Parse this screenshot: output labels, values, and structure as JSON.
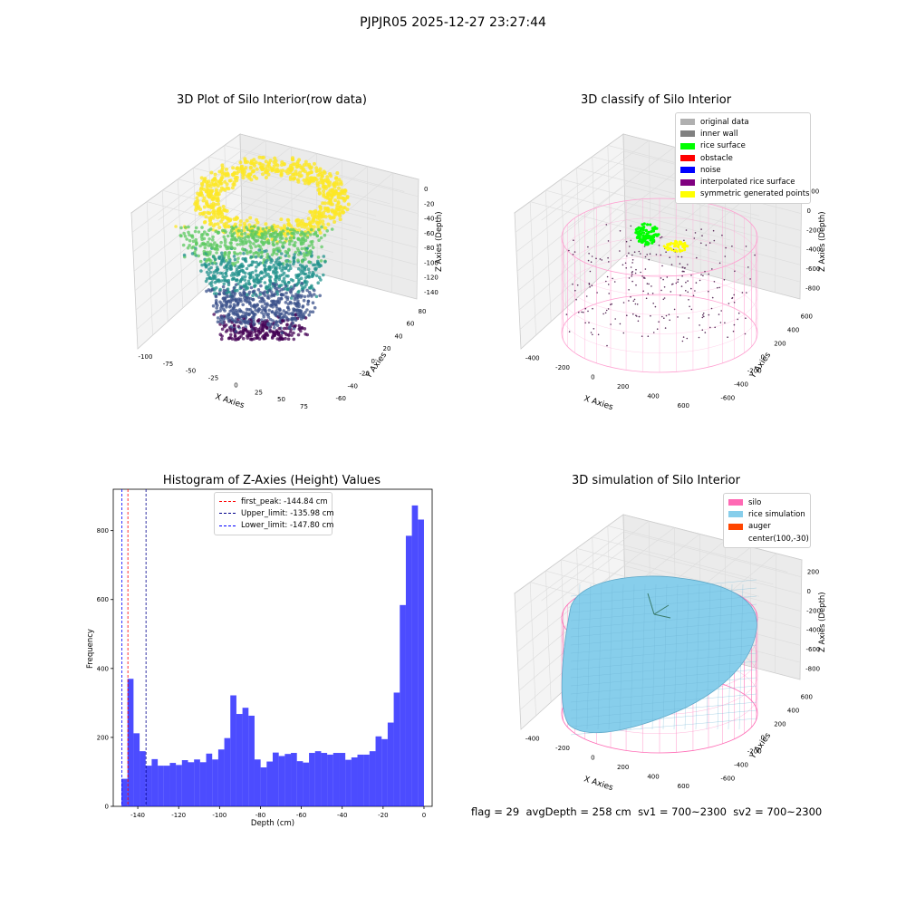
{
  "suptitle": "PJPJR05 2025-12-27 23:27:44",
  "panels": {
    "raw": {
      "title": "3D Plot of Silo Interior(row data)",
      "xlabel": "X Axies",
      "ylabel": "Y Axies",
      "zlabel": "Z Axies (Depth)",
      "xticks": [
        "-100",
        "-75",
        "-50",
        "-25",
        "0",
        "25",
        "50",
        "75"
      ],
      "yticks": [
        "-60",
        "-40",
        "-20",
        "0",
        "20",
        "40",
        "60",
        "80"
      ],
      "zticks": [
        "0",
        "-20",
        "-40",
        "-60",
        "-80",
        "-100",
        "-120",
        "-140"
      ]
    },
    "classify": {
      "title": "3D classify of Silo Interior",
      "xlabel": "X Axies",
      "ylabel": "Y Axies",
      "zlabel": "Z Axies (Depth)",
      "xticks": [
        "-400",
        "-200",
        "0",
        "200",
        "400",
        "600"
      ],
      "yticks": [
        "-600",
        "-400",
        "-200",
        "0",
        "200",
        "400",
        "600"
      ],
      "zticks": [
        "200",
        "0",
        "-200",
        "-400",
        "-600",
        "-800"
      ],
      "legend": [
        {
          "label": "original data",
          "color": "#b0b0b0"
        },
        {
          "label": "inner wall",
          "color": "#808080"
        },
        {
          "label": "rice surface",
          "color": "#00ff00"
        },
        {
          "label": "obstacle",
          "color": "#ff0000"
        },
        {
          "label": "noise",
          "color": "#0000ff"
        },
        {
          "label": "interpolated rice surface",
          "color": "#800080"
        },
        {
          "label": "symmetric generated points",
          "color": "#ffff00"
        }
      ]
    },
    "histogram": {
      "title": "Histogram of Z-Axies (Height) Values",
      "xlabel": "Depth (cm)",
      "ylabel": "Frequency",
      "legend": [
        {
          "label": "first_peak: -144.84 cm",
          "color": "#ff0000"
        },
        {
          "label": "Upper_limit: -135.98 cm",
          "color": "#00008b"
        },
        {
          "label": "Lower_limit: -147.80 cm",
          "color": "#0000ff"
        }
      ]
    },
    "simulation": {
      "title": "3D simulation of Silo Interior",
      "xlabel": "X Axies",
      "ylabel": "Y Axies",
      "zlabel": "Z Axies (Depth)",
      "xticks": [
        "-400",
        "-200",
        "0",
        "200",
        "400",
        "600"
      ],
      "yticks": [
        "-600",
        "-400",
        "-200",
        "0",
        "200",
        "400",
        "600"
      ],
      "zticks": [
        "200",
        "0",
        "-200",
        "-400",
        "-600",
        "-800"
      ],
      "legend": [
        {
          "label": "silo",
          "color": "#ff69b4"
        },
        {
          "label": "rice simulation",
          "color": "#87ceeb"
        },
        {
          "label": "auger",
          "color": "#ff4500"
        },
        {
          "label": "center(100,-30)",
          "color": ""
        }
      ]
    }
  },
  "info": {
    "flag": "flag = 29",
    "avg_depth": "avgDepth = 258 cm",
    "sv1": "sv1 = 700~2300",
    "sv2": "sv2 = 700~2300"
  },
  "chart_data": {
    "type": "bar",
    "title": "Histogram of Z-Axies (Height) Values",
    "xlabel": "Depth (cm)",
    "ylabel": "Frequency",
    "xlim": [
      -152,
      4
    ],
    "ylim": [
      0,
      920
    ],
    "xticks": [
      -140,
      -120,
      -100,
      -80,
      -60,
      -40,
      -20,
      0
    ],
    "yticks": [
      0,
      200,
      400,
      600,
      800
    ],
    "bin_width": 2.96,
    "bin_start": -148.0,
    "values": [
      80,
      370,
      212,
      160,
      118,
      137,
      118,
      118,
      126,
      120,
      134,
      128,
      136,
      128,
      153,
      136,
      165,
      198,
      322,
      268,
      286,
      263,
      136,
      113,
      130,
      156,
      146,
      152,
      155,
      131,
      127,
      155,
      160,
      155,
      150,
      155,
      155,
      135,
      142,
      150,
      150,
      160,
      203,
      195,
      243,
      330,
      584,
      785,
      873,
      832
    ],
    "color": "#0000ff",
    "vlines": [
      {
        "x": -144.84,
        "color": "#ff0000",
        "label": "first_peak: -144.84 cm"
      },
      {
        "x": -135.98,
        "color": "#00008b",
        "label": "Upper_limit: -135.98 cm"
      },
      {
        "x": -147.8,
        "color": "#0000ff",
        "label": "Lower_limit: -147.80 cm"
      }
    ],
    "legend_position": "upper center"
  }
}
